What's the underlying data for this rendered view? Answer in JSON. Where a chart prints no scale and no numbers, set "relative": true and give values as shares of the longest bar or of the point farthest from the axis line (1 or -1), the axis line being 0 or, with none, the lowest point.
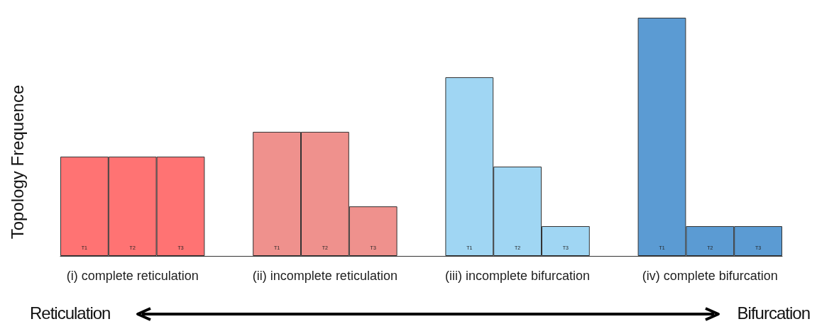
{
  "chart_data": {
    "type": "bar",
    "relative": true,
    "ylabel": "Topology Frequence",
    "categories": [
      "T1",
      "T2",
      "T3",
      null,
      "T1",
      "T2",
      "T3",
      null,
      "T1",
      "T2",
      "T3",
      null,
      "T1",
      "T2",
      "T3"
    ],
    "values": [
      0.417,
      0.417,
      0.417,
      null,
      0.521,
      0.521,
      0.208,
      null,
      0.75,
      0.375,
      0.125,
      null,
      1,
      0.125,
      0.125
    ],
    "colors": [
      "#ff7373",
      "#ff7373",
      "#ff7373",
      "#ffffff",
      "#ef918d",
      "#ef918d",
      "#ef918d",
      "#ffffff",
      "#a0d6f3",
      "#a0d6f3",
      "#a0d6f3",
      "#ffffff",
      "#5b9bd3",
      "#5b9bd3",
      "#5b9bd3"
    ],
    "annotations": [
      "(i) complete reticulation",
      "(ii) incomplete reticulation",
      "(iii) incomplete bifurcation",
      "(iv) complete bifurcation",
      "Reticulation",
      "Bifurcation"
    ]
  }
}
